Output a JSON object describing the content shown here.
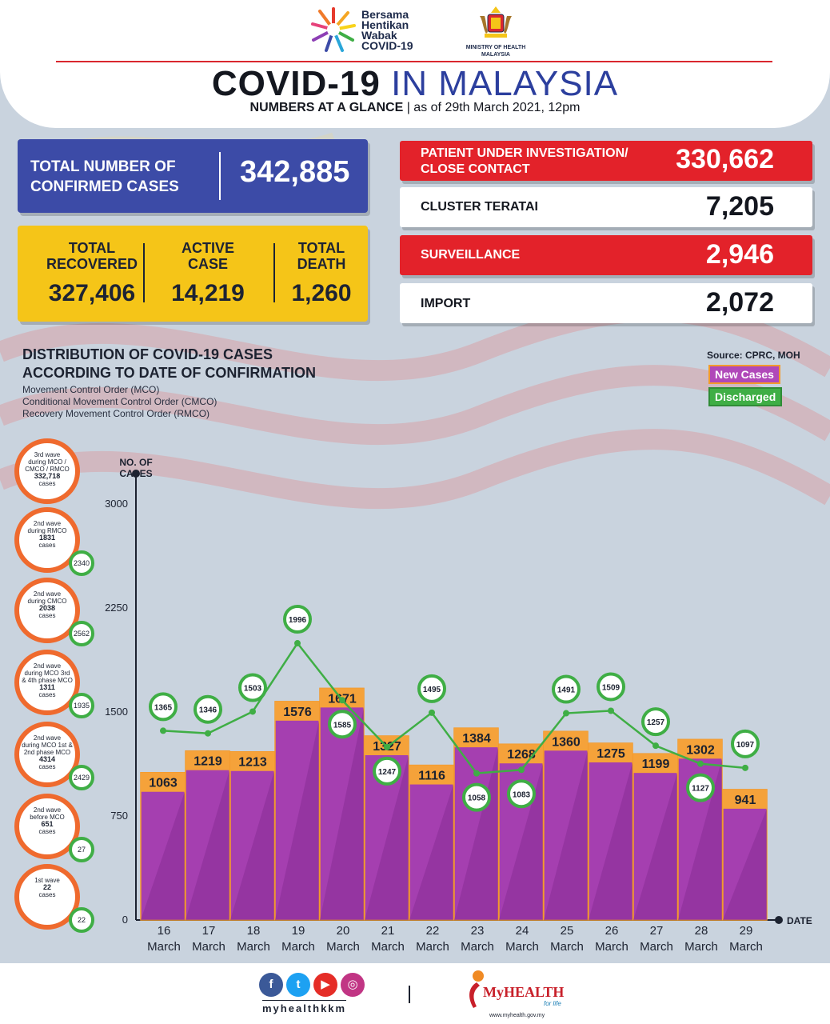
{
  "header": {
    "campaign_logo_text": [
      "Bersama",
      "Hentikan",
      "Wabak",
      "COVID-19"
    ],
    "ministry_text": [
      "MINISTRY OF HEALTH",
      "MALAYSIA"
    ],
    "title_main": "COVID-19",
    "title_rest": "IN MALAYSIA",
    "subtitle_bold": "NUMBERS AT A GLANCE",
    "subtitle_rest": "| as of 29th March 2021, 12pm"
  },
  "summary": {
    "confirmed_label": [
      "TOTAL NUMBER OF",
      "CONFIRMED CASES"
    ],
    "confirmed_value": "342,885",
    "recovered_label": [
      "TOTAL",
      "RECOVERED"
    ],
    "recovered_value": "327,406",
    "active_label": [
      "ACTIVE",
      "CASE"
    ],
    "active_value": "14,219",
    "death_label": [
      "TOTAL",
      "DEATH"
    ],
    "death_value": "1,260"
  },
  "categories": [
    {
      "label": [
        "PATIENT UNDER INVESTIGATION/",
        "CLOSE CONTACT"
      ],
      "value": "330,662",
      "style": "red"
    },
    {
      "label": [
        "CLUSTER TERATAI"
      ],
      "value": "7,205",
      "style": "white"
    },
    {
      "label": [
        "SURVEILLANCE"
      ],
      "value": "2,946",
      "style": "red"
    },
    {
      "label": [
        "IMPORT"
      ],
      "value": "2,072",
      "style": "white"
    }
  ],
  "distribution": {
    "title": [
      "DISTRIBUTION OF COVID-19 CASES",
      "ACCORDING TO DATE OF CONFIRMATION"
    ],
    "mco_lines": [
      "Movement Control Order (MCO)",
      "Conditional Movement Control Order (CMCO)",
      "Recovery Movement Control Order (RMCO)"
    ],
    "source": "Source: CPRC, MOH",
    "legend_new": "New Cases",
    "legend_discharged": "Discharged"
  },
  "waves": [
    {
      "lines": [
        "3rd wave",
        "during MCO /",
        "CMCO / RMCO"
      ],
      "value": "332,718",
      "unit": "cases",
      "discharged": ""
    },
    {
      "lines": [
        "2nd wave",
        "during RMCO"
      ],
      "value": "1831",
      "unit": "cases",
      "discharged": "2340"
    },
    {
      "lines": [
        "2nd wave",
        "during CMCO"
      ],
      "value": "2038",
      "unit": "cases",
      "discharged": "2562"
    },
    {
      "lines": [
        "2nd wave",
        "during MCO 3rd",
        "& 4th phase MCO"
      ],
      "value": "1311",
      "unit": "cases",
      "discharged": "1935"
    },
    {
      "lines": [
        "2nd wave",
        "during MCO 1st &",
        "2nd phase MCO"
      ],
      "value": "4314",
      "unit": "cases",
      "discharged": "2429"
    },
    {
      "lines": [
        "2nd wave",
        "before MCO"
      ],
      "value": "651",
      "unit": "cases",
      "discharged": "27"
    },
    {
      "lines": [
        "1st wave"
      ],
      "value": "22",
      "unit": "cases",
      "discharged": "22"
    }
  ],
  "chart_data": {
    "type": "bar",
    "ylabel": [
      "NO. OF",
      "CASES"
    ],
    "xlabel": "DATE",
    "ylim": [
      0,
      3000
    ],
    "yticks": [
      0,
      750,
      1500,
      2250,
      3000
    ],
    "categories": [
      [
        "16",
        "March"
      ],
      [
        "17",
        "March"
      ],
      [
        "18",
        "March"
      ],
      [
        "19",
        "March"
      ],
      [
        "20",
        "March"
      ],
      [
        "21",
        "March"
      ],
      [
        "22",
        "March"
      ],
      [
        "23",
        "March"
      ],
      [
        "24",
        "March"
      ],
      [
        "25",
        "March"
      ],
      [
        "26",
        "March"
      ],
      [
        "27",
        "March"
      ],
      [
        "28",
        "March"
      ],
      [
        "29",
        "March"
      ]
    ],
    "series": [
      {
        "name": "New Cases",
        "type": "bar",
        "color": "#b048b9",
        "values": [
          1063,
          1219,
          1213,
          1576,
          1671,
          1327,
          1116,
          1384,
          1268,
          1360,
          1275,
          1199,
          1302,
          941
        ]
      },
      {
        "name": "Discharged",
        "type": "line",
        "color": "#3fae45",
        "values": [
          1365,
          1346,
          1503,
          1996,
          1585,
          1247,
          1495,
          1058,
          1083,
          1491,
          1509,
          1257,
          1127,
          1097
        ]
      }
    ]
  },
  "footer": {
    "handle": "myhealthkkm",
    "brand": "MyHEALTH",
    "tagline": "for life",
    "url": "www.myhealth.gov.my"
  }
}
